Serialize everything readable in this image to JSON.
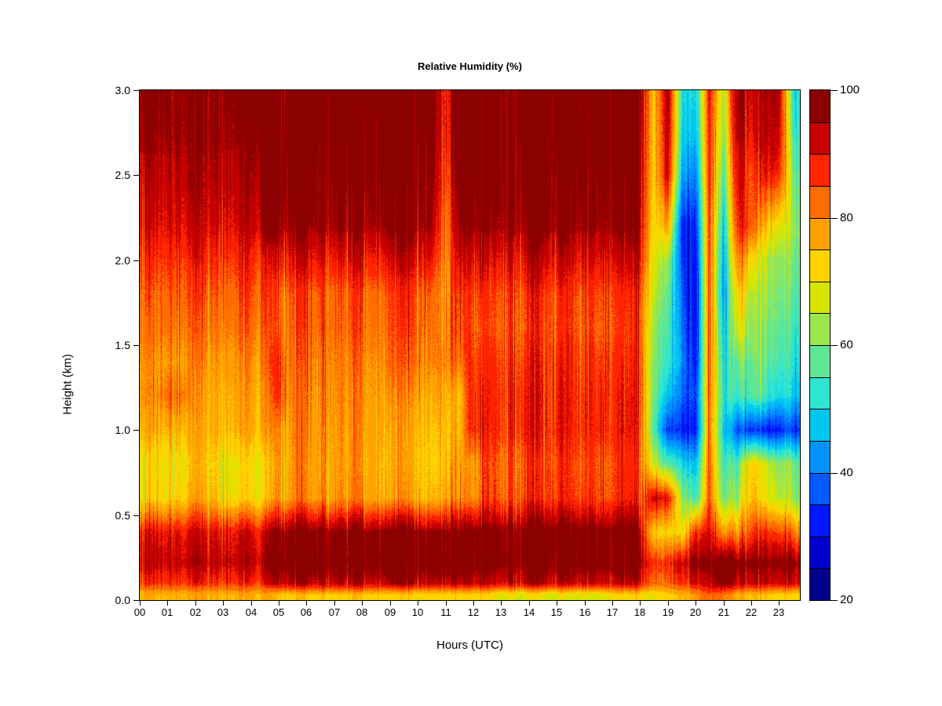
{
  "title": "Relative Humidity (%)",
  "background": "#ffffff",
  "chart_data": {
    "type": "heatmap",
    "title": "Relative Humidity (%)",
    "xlabel": "Hours (UTC)",
    "ylabel": "Height (km)",
    "xlim": [
      0,
      23.75
    ],
    "ylim": [
      0,
      3
    ],
    "grid_lines": "off",
    "x_ticks": {
      "values": [
        0,
        1,
        2,
        3,
        4,
        5,
        6,
        7,
        8,
        9,
        10,
        11,
        12,
        13,
        14,
        15,
        16,
        17,
        18,
        19,
        20,
        21,
        22,
        23
      ],
      "labels": [
        "00",
        "01",
        "02",
        "03",
        "04",
        "05",
        "06",
        "07",
        "08",
        "09",
        "10",
        "11",
        "12",
        "13",
        "14",
        "15",
        "16",
        "17",
        "18",
        "19",
        "20",
        "21",
        "22",
        "23"
      ]
    },
    "y_ticks": {
      "values": [
        0,
        0.5,
        1,
        1.5,
        2,
        2.5,
        3
      ],
      "labels": [
        "0.0",
        "0.5",
        "1.0",
        "1.5",
        "2.0",
        "2.5",
        "3.0"
      ]
    },
    "colorbar": {
      "position": "right",
      "min": 20,
      "max": 100,
      "step": 5,
      "tick_values": [
        100,
        80,
        60,
        40,
        20
      ],
      "tick_labels": [
        "100",
        "80",
        "60",
        "40",
        "20"
      ],
      "colors": [
        "#00008B",
        "#0000CE",
        "#0018FF",
        "#005AFF",
        "#0092FF",
        "#00C6F0",
        "#2EE5D2",
        "#5FE695",
        "#9BE64E",
        "#D7E600",
        "#FFD300",
        "#FFA200",
        "#FF6D00",
        "#FF2400",
        "#C80000",
        "#8B0000"
      ]
    },
    "grid": {
      "hours": [
        0,
        0.5,
        1,
        1.5,
        2,
        2.5,
        3,
        3.5,
        4,
        4.5,
        5,
        5.5,
        6,
        6.5,
        7,
        7.5,
        8,
        8.5,
        9,
        9.5,
        10,
        10.5,
        11,
        11.5,
        12,
        12.5,
        13,
        13.5,
        14,
        14.5,
        15,
        15.5,
        16,
        16.5,
        17,
        17.5,
        18,
        18.5,
        19,
        19.5,
        20,
        20.5,
        21,
        21.5,
        22,
        22.5,
        23,
        23.5
      ],
      "heights": [
        0.03,
        0.1,
        0.22,
        0.4,
        0.6,
        0.8,
        1.0,
        1.2,
        1.4,
        1.6,
        1.8,
        2.0,
        2.2,
        2.5,
        2.75,
        3.0
      ],
      "rh": [
        [
          76,
          76,
          76,
          76,
          76,
          76,
          76,
          76,
          76,
          76,
          74,
          74,
          74,
          74,
          74,
          74,
          74,
          74,
          72,
          72,
          72,
          72,
          72,
          72,
          72,
          72,
          69,
          69,
          69,
          69,
          69,
          69,
          69,
          69,
          72,
          72,
          72,
          70,
          74,
          75,
          78,
          85,
          80,
          76,
          75,
          74,
          72,
          72
        ],
        [
          88,
          88,
          88,
          88,
          88,
          88,
          88,
          88,
          88,
          88,
          95,
          95,
          95,
          95,
          95,
          95,
          95,
          95,
          95,
          95,
          95,
          95,
          95,
          95,
          94,
          94,
          94,
          94,
          94,
          94,
          94,
          94,
          94,
          94,
          94,
          94,
          93,
          82,
          85,
          87,
          90,
          96,
          97,
          94,
          93,
          93,
          92,
          92
        ],
        [
          94,
          94,
          94,
          94,
          94,
          94,
          94,
          94,
          94,
          94,
          100,
          100,
          100,
          100,
          100,
          100,
          100,
          100,
          100,
          100,
          100,
          100,
          100,
          100,
          99,
          99,
          99,
          99,
          99,
          99,
          99,
          99,
          99,
          99,
          99,
          99,
          99,
          86,
          90,
          92,
          97,
          99,
          99,
          98,
          98,
          97,
          97,
          97
        ],
        [
          91,
          91,
          91,
          91,
          91,
          91,
          91,
          91,
          91,
          91,
          98,
          98,
          98,
          98,
          98,
          98,
          98,
          98,
          98,
          98,
          98,
          98,
          98,
          98,
          99,
          99,
          99,
          99,
          99,
          99,
          99,
          99,
          99,
          99,
          99,
          99,
          97,
          72,
          74,
          70,
          86,
          94,
          76,
          80,
          86,
          88,
          85,
          82
        ],
        [
          73,
          73,
          73,
          74,
          77,
          77,
          72,
          72,
          72,
          72,
          80,
          80,
          80,
          80,
          80,
          80,
          80,
          80,
          77,
          77,
          77,
          77,
          77,
          80,
          80,
          87,
          87,
          87,
          87,
          87,
          87,
          87,
          87,
          87,
          87,
          87,
          88,
          92,
          92,
          62,
          52,
          88,
          56,
          64,
          76,
          70,
          65,
          62
        ],
        [
          72,
          72,
          72,
          72,
          75,
          75,
          71,
          71,
          71,
          71,
          79,
          79,
          79,
          79,
          79,
          79,
          79,
          79,
          75,
          75,
          75,
          75,
          75,
          78,
          78,
          86,
          86,
          86,
          86,
          86,
          86,
          86,
          86,
          86,
          86,
          86,
          86,
          66,
          58,
          50,
          44,
          87,
          52,
          58,
          74,
          68,
          62,
          60
        ],
        [
          77,
          77,
          77,
          77,
          77,
          77,
          77,
          77,
          77,
          77,
          80,
          80,
          80,
          80,
          80,
          80,
          80,
          80,
          76,
          76,
          76,
          76,
          76,
          76,
          89,
          89,
          89,
          89,
          89,
          89,
          89,
          89,
          89,
          89,
          89,
          89,
          88,
          55,
          36,
          32,
          30,
          85,
          46,
          38,
          35,
          33,
          32,
          35
        ],
        [
          80,
          80,
          84,
          84,
          78,
          78,
          78,
          78,
          78,
          78,
          87,
          81,
          81,
          81,
          81,
          81,
          81,
          81,
          78,
          78,
          78,
          78,
          78,
          76,
          89,
          89,
          89,
          89,
          89,
          89,
          89,
          89,
          89,
          89,
          89,
          89,
          88,
          58,
          48,
          38,
          33,
          86,
          50,
          55,
          57,
          55,
          50,
          48
        ],
        [
          80,
          80,
          80,
          80,
          80,
          80,
          80,
          80,
          80,
          80,
          88,
          82,
          82,
          82,
          82,
          82,
          82,
          82,
          82,
          82,
          82,
          82,
          82,
          82,
          88,
          88,
          88,
          88,
          88,
          88,
          88,
          88,
          88,
          88,
          88,
          88,
          87,
          60,
          55,
          42,
          30,
          87,
          48,
          60,
          60,
          58,
          55,
          52
        ],
        [
          83,
          83,
          83,
          83,
          83,
          83,
          83,
          83,
          83,
          83,
          84,
          84,
          84,
          84,
          84,
          84,
          84,
          84,
          84,
          84,
          84,
          84,
          80,
          86,
          86,
          86,
          86,
          86,
          86,
          86,
          86,
          86,
          86,
          86,
          86,
          86,
          86,
          62,
          57,
          40,
          28,
          88,
          44,
          70,
          62,
          60,
          58,
          55
        ],
        [
          85,
          85,
          85,
          85,
          85,
          85,
          85,
          85,
          85,
          85,
          85,
          85,
          85,
          85,
          85,
          85,
          85,
          85,
          85,
          85,
          85,
          85,
          79,
          87,
          87,
          87,
          87,
          87,
          87,
          87,
          87,
          87,
          87,
          87,
          87,
          87,
          87,
          65,
          60,
          38,
          27,
          88,
          40,
          75,
          65,
          62,
          60,
          58
        ],
        [
          88,
          88,
          88,
          88,
          88,
          88,
          88,
          88,
          88,
          88,
          91,
          91,
          91,
          91,
          91,
          91,
          91,
          91,
          91,
          91,
          91,
          91,
          80,
          92,
          92,
          92,
          92,
          92,
          92,
          92,
          92,
          92,
          92,
          92,
          92,
          92,
          92,
          68,
          65,
          35,
          28,
          89,
          42,
          82,
          72,
          65,
          62,
          60
        ],
        [
          92,
          92,
          92,
          92,
          92,
          92,
          92,
          92,
          92,
          97,
          97,
          97,
          97,
          97,
          97,
          97,
          97,
          97,
          97,
          97,
          97,
          97,
          82,
          97,
          97,
          97,
          97,
          97,
          97,
          97,
          97,
          97,
          97,
          97,
          97,
          97,
          97,
          70,
          80,
          33,
          30,
          90,
          45,
          90,
          85,
          75,
          70,
          62
        ],
        [
          95,
          95,
          95,
          95,
          95,
          95,
          95,
          95,
          95,
          99,
          99,
          99,
          99,
          99,
          99,
          99,
          99,
          99,
          99,
          99,
          99,
          99,
          85,
          99,
          99,
          99,
          99,
          99,
          99,
          99,
          99,
          99,
          99,
          99,
          99,
          99,
          99,
          72,
          95,
          45,
          38,
          92,
          52,
          95,
          85,
          90,
          88,
          60
        ],
        [
          97,
          97,
          97,
          97,
          97,
          97,
          97,
          97,
          97,
          100,
          100,
          100,
          100,
          100,
          100,
          100,
          100,
          100,
          100,
          100,
          100,
          100,
          88,
          100,
          100,
          100,
          100,
          100,
          100,
          100,
          100,
          100,
          100,
          100,
          100,
          100,
          100,
          72,
          97,
          50,
          45,
          93,
          58,
          97,
          90,
          95,
          93,
          55
        ],
        [
          98,
          98,
          98,
          98,
          98,
          98,
          98,
          98,
          98,
          100,
          100,
          100,
          100,
          100,
          100,
          100,
          100,
          100,
          100,
          100,
          100,
          100,
          90,
          100,
          100,
          100,
          100,
          100,
          100,
          100,
          100,
          100,
          100,
          100,
          100,
          100,
          100,
          73,
          98,
          52,
          48,
          94,
          62,
          98,
          92,
          96,
          95,
          52
        ]
      ]
    }
  }
}
